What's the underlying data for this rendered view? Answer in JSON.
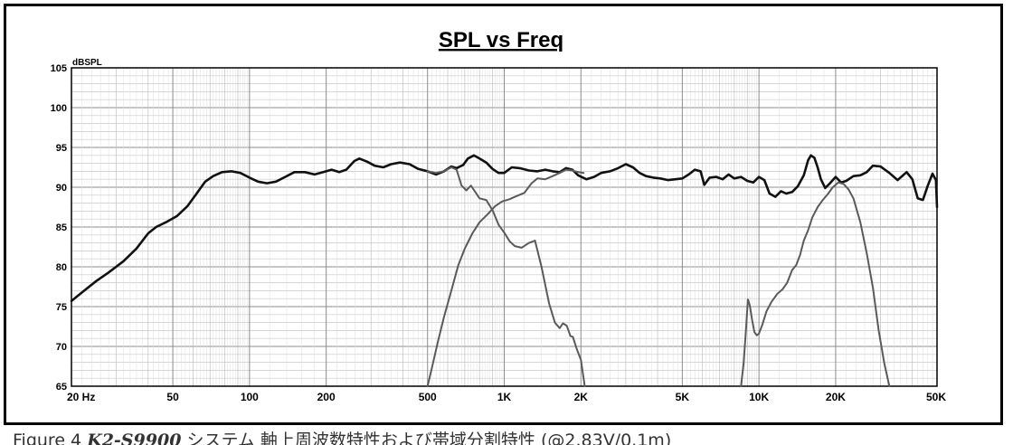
{
  "chart_data": {
    "type": "line",
    "title": "SPL vs Freq",
    "ylabel": "dBSPL",
    "xscale": "log",
    "xlim": [
      20,
      50000
    ],
    "ylim": [
      65,
      105
    ],
    "grid": true,
    "y_ticks": [
      "105",
      "100",
      "95",
      "90",
      "85",
      "80",
      "75",
      "70",
      "65"
    ],
    "x_ticks": [
      {
        "label": "20 Hz",
        "value": 20
      },
      {
        "label": "50",
        "value": 50
      },
      {
        "label": "100",
        "value": 100
      },
      {
        "label": "200",
        "value": 200
      },
      {
        "label": "500",
        "value": 500
      },
      {
        "label": "1K",
        "value": 1000
      },
      {
        "label": "2K",
        "value": 2000
      },
      {
        "label": "5K",
        "value": 5000
      },
      {
        "label": "10K",
        "value": 10000
      },
      {
        "label": "20K",
        "value": 20000
      },
      {
        "label": "50K",
        "value": 50000
      }
    ],
    "series": [
      {
        "color": "#111111",
        "width": 2.6,
        "points": [
          [
            20,
            75.7
          ],
          [
            22,
            76.8
          ],
          [
            25,
            78.2
          ],
          [
            28,
            79.3
          ],
          [
            32,
            80.7
          ],
          [
            36,
            82.3
          ],
          [
            40,
            84.2
          ],
          [
            43,
            85.0
          ],
          [
            47,
            85.6
          ],
          [
            52,
            86.4
          ],
          [
            57,
            87.6
          ],
          [
            62,
            89.2
          ],
          [
            67,
            90.7
          ],
          [
            72,
            91.4
          ],
          [
            78,
            91.9
          ],
          [
            85,
            92.0
          ],
          [
            92,
            91.8
          ],
          [
            100,
            91.2
          ],
          [
            108,
            90.7
          ],
          [
            117,
            90.5
          ],
          [
            127,
            90.7
          ],
          [
            138,
            91.3
          ],
          [
            150,
            91.9
          ],
          [
            165,
            91.9
          ],
          [
            180,
            91.6
          ],
          [
            195,
            91.9
          ],
          [
            210,
            92.2
          ],
          [
            225,
            91.9
          ],
          [
            240,
            92.2
          ],
          [
            258,
            93.3
          ],
          [
            270,
            93.6
          ],
          [
            290,
            93.2
          ],
          [
            310,
            92.7
          ],
          [
            335,
            92.5
          ],
          [
            360,
            92.9
          ],
          [
            390,
            93.1
          ],
          [
            425,
            92.9
          ],
          [
            460,
            92.3
          ],
          [
            500,
            92.0
          ],
          [
            540,
            91.6
          ],
          [
            580,
            92.0
          ],
          [
            620,
            92.6
          ],
          [
            650,
            92.4
          ],
          [
            690,
            92.8
          ],
          [
            720,
            93.6
          ],
          [
            760,
            94.0
          ],
          [
            800,
            93.6
          ],
          [
            850,
            93.1
          ],
          [
            900,
            92.3
          ],
          [
            950,
            91.8
          ],
          [
            1000,
            91.8
          ],
          [
            1070,
            92.5
          ],
          [
            1150,
            92.4
          ],
          [
            1250,
            92.1
          ],
          [
            1350,
            92.0
          ],
          [
            1450,
            92.2
          ],
          [
            1550,
            92.0
          ],
          [
            1650,
            91.9
          ],
          [
            1750,
            92.4
          ],
          [
            1850,
            92.2
          ],
          [
            1950,
            91.5
          ],
          [
            2100,
            91.0
          ],
          [
            2250,
            91.3
          ],
          [
            2400,
            91.8
          ],
          [
            2600,
            92.0
          ],
          [
            2800,
            92.4
          ],
          [
            3000,
            92.9
          ],
          [
            3200,
            92.5
          ],
          [
            3400,
            91.8
          ],
          [
            3600,
            91.4
          ],
          [
            3850,
            91.2
          ],
          [
            4100,
            91.1
          ],
          [
            4400,
            90.9
          ],
          [
            4700,
            91.0
          ],
          [
            5000,
            91.1
          ],
          [
            5300,
            91.6
          ],
          [
            5600,
            92.2
          ],
          [
            5900,
            92.0
          ],
          [
            6100,
            90.3
          ],
          [
            6400,
            91.2
          ],
          [
            6800,
            91.3
          ],
          [
            7200,
            91.0
          ],
          [
            7600,
            91.6
          ],
          [
            8000,
            91.1
          ],
          [
            8500,
            91.3
          ],
          [
            9000,
            90.8
          ],
          [
            9500,
            90.6
          ],
          [
            10000,
            91.3
          ],
          [
            10500,
            90.9
          ],
          [
            11000,
            89.2
          ],
          [
            11600,
            88.8
          ],
          [
            12200,
            89.5
          ],
          [
            12800,
            89.2
          ],
          [
            13500,
            89.4
          ],
          [
            14200,
            90.1
          ],
          [
            15000,
            91.5
          ],
          [
            15600,
            93.4
          ],
          [
            16000,
            94.0
          ],
          [
            16500,
            93.7
          ],
          [
            17000,
            92.5
          ],
          [
            17500,
            91.0
          ],
          [
            18200,
            89.9
          ],
          [
            19000,
            90.5
          ],
          [
            20000,
            91.3
          ],
          [
            21000,
            90.6
          ],
          [
            22000,
            90.8
          ],
          [
            23500,
            91.4
          ],
          [
            25000,
            91.5
          ],
          [
            26500,
            91.9
          ],
          [
            28000,
            92.7
          ],
          [
            30000,
            92.6
          ],
          [
            32500,
            91.8
          ],
          [
            35000,
            90.9
          ],
          [
            38000,
            91.9
          ],
          [
            40000,
            91.0
          ],
          [
            42000,
            88.6
          ],
          [
            44000,
            88.4
          ],
          [
            46000,
            90.2
          ],
          [
            48000,
            91.7
          ],
          [
            49500,
            90.9
          ],
          [
            50000,
            87.5
          ]
        ]
      },
      {
        "color": "#5a5a5a",
        "width": 2.0,
        "points": [
          [
            500,
            92.0
          ],
          [
            540,
            91.8
          ],
          [
            580,
            92.0
          ],
          [
            620,
            92.5
          ],
          [
            650,
            92.2
          ],
          [
            680,
            90.2
          ],
          [
            710,
            89.6
          ],
          [
            740,
            90.2
          ],
          [
            770,
            89.4
          ],
          [
            800,
            88.6
          ],
          [
            850,
            88.4
          ],
          [
            900,
            87.1
          ],
          [
            950,
            85.3
          ],
          [
            1000,
            84.3
          ],
          [
            1050,
            83.2
          ],
          [
            1100,
            82.6
          ],
          [
            1170,
            82.4
          ],
          [
            1250,
            83.0
          ],
          [
            1320,
            83.3
          ],
          [
            1400,
            80.0
          ],
          [
            1500,
            75.4
          ],
          [
            1580,
            73.0
          ],
          [
            1650,
            72.3
          ],
          [
            1700,
            72.9
          ],
          [
            1760,
            72.6
          ],
          [
            1820,
            71.3
          ],
          [
            1860,
            71.2
          ],
          [
            1920,
            69.8
          ],
          [
            2000,
            68.3
          ],
          [
            2070,
            65.0
          ]
        ]
      },
      {
        "color": "#5a5a5a",
        "width": 2.0,
        "points": [
          [
            500,
            65.0
          ],
          [
            520,
            67.3
          ],
          [
            550,
            70.7
          ],
          [
            580,
            73.7
          ],
          [
            620,
            77.0
          ],
          [
            660,
            80.2
          ],
          [
            700,
            82.3
          ],
          [
            750,
            84.2
          ],
          [
            800,
            85.6
          ],
          [
            860,
            86.6
          ],
          [
            920,
            87.6
          ],
          [
            980,
            88.2
          ],
          [
            1050,
            88.5
          ],
          [
            1120,
            88.9
          ],
          [
            1200,
            89.3
          ],
          [
            1280,
            90.5
          ],
          [
            1350,
            91.1
          ],
          [
            1450,
            91.0
          ],
          [
            1550,
            91.4
          ],
          [
            1650,
            91.8
          ],
          [
            1750,
            92.2
          ],
          [
            1850,
            92.1
          ],
          [
            1950,
            91.9
          ],
          [
            2050,
            91.8
          ]
        ]
      },
      {
        "color": "#5a5a5a",
        "width": 2.0,
        "points": [
          [
            8500,
            65.0
          ],
          [
            8700,
            67.8
          ],
          [
            8900,
            72.3
          ],
          [
            9050,
            75.9
          ],
          [
            9200,
            75.2
          ],
          [
            9400,
            73.3
          ],
          [
            9600,
            71.8
          ],
          [
            9800,
            71.4
          ],
          [
            10000,
            71.6
          ],
          [
            10300,
            72.7
          ],
          [
            10700,
            74.4
          ],
          [
            11200,
            75.6
          ],
          [
            11800,
            76.6
          ],
          [
            12400,
            77.2
          ],
          [
            12900,
            78.0
          ],
          [
            13500,
            79.6
          ],
          [
            14000,
            80.2
          ],
          [
            14500,
            81.5
          ],
          [
            15000,
            83.3
          ],
          [
            15600,
            84.6
          ],
          [
            16200,
            86.2
          ],
          [
            17000,
            87.5
          ],
          [
            17800,
            88.4
          ],
          [
            18600,
            89.1
          ],
          [
            19500,
            90.0
          ],
          [
            20500,
            90.6
          ],
          [
            21500,
            90.4
          ],
          [
            22500,
            89.7
          ],
          [
            23500,
            88.6
          ],
          [
            25000,
            85.6
          ],
          [
            26500,
            81.7
          ],
          [
            28000,
            77.4
          ],
          [
            29500,
            72.0
          ],
          [
            31000,
            68.0
          ],
          [
            32500,
            65.0
          ]
        ]
      }
    ]
  },
  "caption": {
    "prefix": "Figure 4 ",
    "model": "K2-S9900",
    "suffix": " システム 軸上周波数特性および帯域分割特性 (@2.83V/0.1m)"
  }
}
